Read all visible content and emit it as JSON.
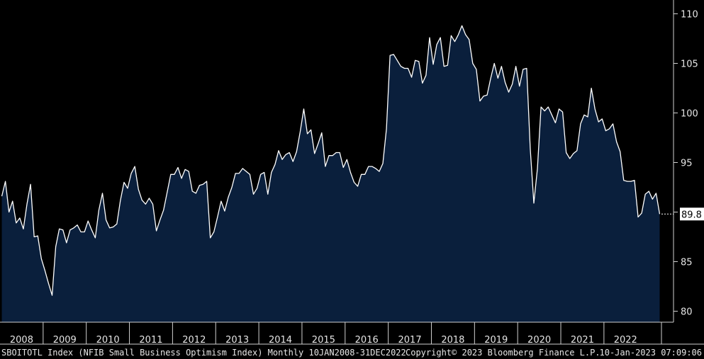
{
  "chart_data": {
    "type": "area",
    "series": [
      {
        "values": [
          91.6,
          93.1,
          90.0,
          91.1,
          88.9,
          89.4,
          88.3,
          90.8,
          92.8,
          87.5,
          87.6,
          85.3,
          84.1,
          82.8,
          81.6,
          86.5,
          88.3,
          88.2,
          86.9,
          88.2,
          88.4,
          88.7,
          88.0,
          88.0,
          89.1,
          88.2,
          87.4,
          90.2,
          91.9,
          89.2,
          88.4,
          88.5,
          88.8,
          91.2,
          93.0,
          92.4,
          93.9,
          94.6,
          92.3,
          91.2,
          90.8,
          91.4,
          90.8,
          88.1,
          89.2,
          90.2,
          92.0,
          93.8,
          93.8,
          94.5,
          93.4,
          94.3,
          94.1,
          92.1,
          91.9,
          92.7,
          92.8,
          93.1,
          87.4,
          88.0,
          89.5,
          91.1,
          90.1,
          91.5,
          92.5,
          93.9,
          93.9,
          94.4,
          94.1,
          93.8,
          91.8,
          92.4,
          93.8,
          94.0,
          91.8,
          94.0,
          94.8,
          96.2,
          95.3,
          95.8,
          96.0,
          95.1,
          96.1,
          98.1,
          100.4,
          97.9,
          98.3,
          95.9,
          96.9,
          98.0,
          94.6,
          95.7,
          95.7,
          96.0,
          96.0,
          94.5,
          95.3,
          94.0,
          93.0,
          92.6,
          93.8,
          93.8,
          94.6,
          94.6,
          94.4,
          94.1,
          94.9,
          98.4,
          105.8,
          105.9,
          105.3,
          104.7,
          104.5,
          104.5,
          103.6,
          105.3,
          105.2,
          103.0,
          103.8,
          107.6,
          104.9,
          106.9,
          107.6,
          104.7,
          104.8,
          107.8,
          107.2,
          107.9,
          108.8,
          107.9,
          107.4,
          105.0,
          104.4,
          101.2,
          101.7,
          101.8,
          103.5,
          105.0,
          103.5,
          104.7,
          103.1,
          102.1,
          102.9,
          104.7,
          102.7,
          104.4,
          104.5,
          96.4,
          90.9,
          94.4,
          100.6,
          100.2,
          100.6,
          99.8,
          99.0,
          100.4,
          100.1,
          96.0,
          95.4,
          95.9,
          96.2,
          98.9,
          99.8,
          99.6,
          102.5,
          100.4,
          99.1,
          99.4,
          98.2,
          98.4,
          98.9,
          97.1,
          96.1,
          93.2,
          93.1,
          93.1,
          93.2,
          89.5,
          89.9,
          91.8,
          92.1,
          91.3,
          91.9,
          89.8
        ],
        "color": "#ffffff",
        "fill": "#0a1f3c"
      }
    ],
    "x_start": "2008-01",
    "x_end": "2022-12",
    "x_tick_labels": [
      "2008",
      "2009",
      "2010",
      "2011",
      "2012",
      "2013",
      "2014",
      "2015",
      "2016",
      "2017",
      "2018",
      "2019",
      "2020",
      "2021",
      "2022"
    ],
    "y_tick_labels": [
      "80",
      "85",
      "90",
      "95",
      "100",
      "105",
      "110"
    ],
    "ylim": [
      79,
      111
    ],
    "last_value_label": "89.8",
    "grid": false
  },
  "footer": {
    "left": "SBOITOTL Index (NFIB Small Business Optimism Index)  Monthly 10JAN2008-31DEC2022",
    "copyright": "Copyright© 2023 Bloomberg Finance L.P.",
    "timestamp": "10-Jan-2023 07:09:06"
  }
}
